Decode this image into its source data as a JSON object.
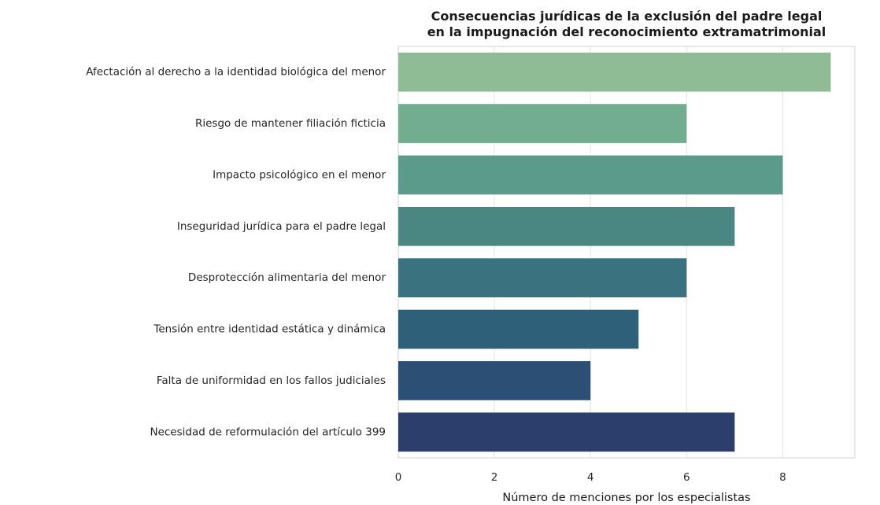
{
  "chart_data": {
    "type": "bar",
    "orientation": "horizontal",
    "title": "Consecuencias jurídicas de la exclusión del padre legal\nen la impugnación del reconocimiento extramatrimonial",
    "title_lines": [
      "Consecuencias jurídicas de la exclusión del padre legal",
      "en la impugnación del reconocimiento extramatrimonial"
    ],
    "xlabel": "Número de menciones por los especialistas",
    "ylabel": "",
    "xlim": [
      0,
      9.5
    ],
    "xticks": [
      0,
      2,
      4,
      6,
      8
    ],
    "grid": "vertical",
    "categories": [
      "Afectación al derecho a la identidad biológica del menor",
      "Riesgo de mantener filiación ficticia",
      "Impacto psicológico en el menor",
      "Inseguridad jurídica para el padre legal",
      "Desprotección alimentaria del menor",
      "Tensión entre identidad estática y dinámica",
      "Falta de uniformidad en los fallos judiciales",
      "Necesidad de reformulación del artículo 399"
    ],
    "values": [
      9,
      6,
      8,
      7,
      6,
      5,
      4,
      7
    ],
    "colors": [
      "#8fbc94",
      "#72ad8f",
      "#5b9b8c",
      "#4a8783",
      "#3a737f",
      "#2e6079",
      "#2b4f75",
      "#2b3e6c"
    ]
  }
}
